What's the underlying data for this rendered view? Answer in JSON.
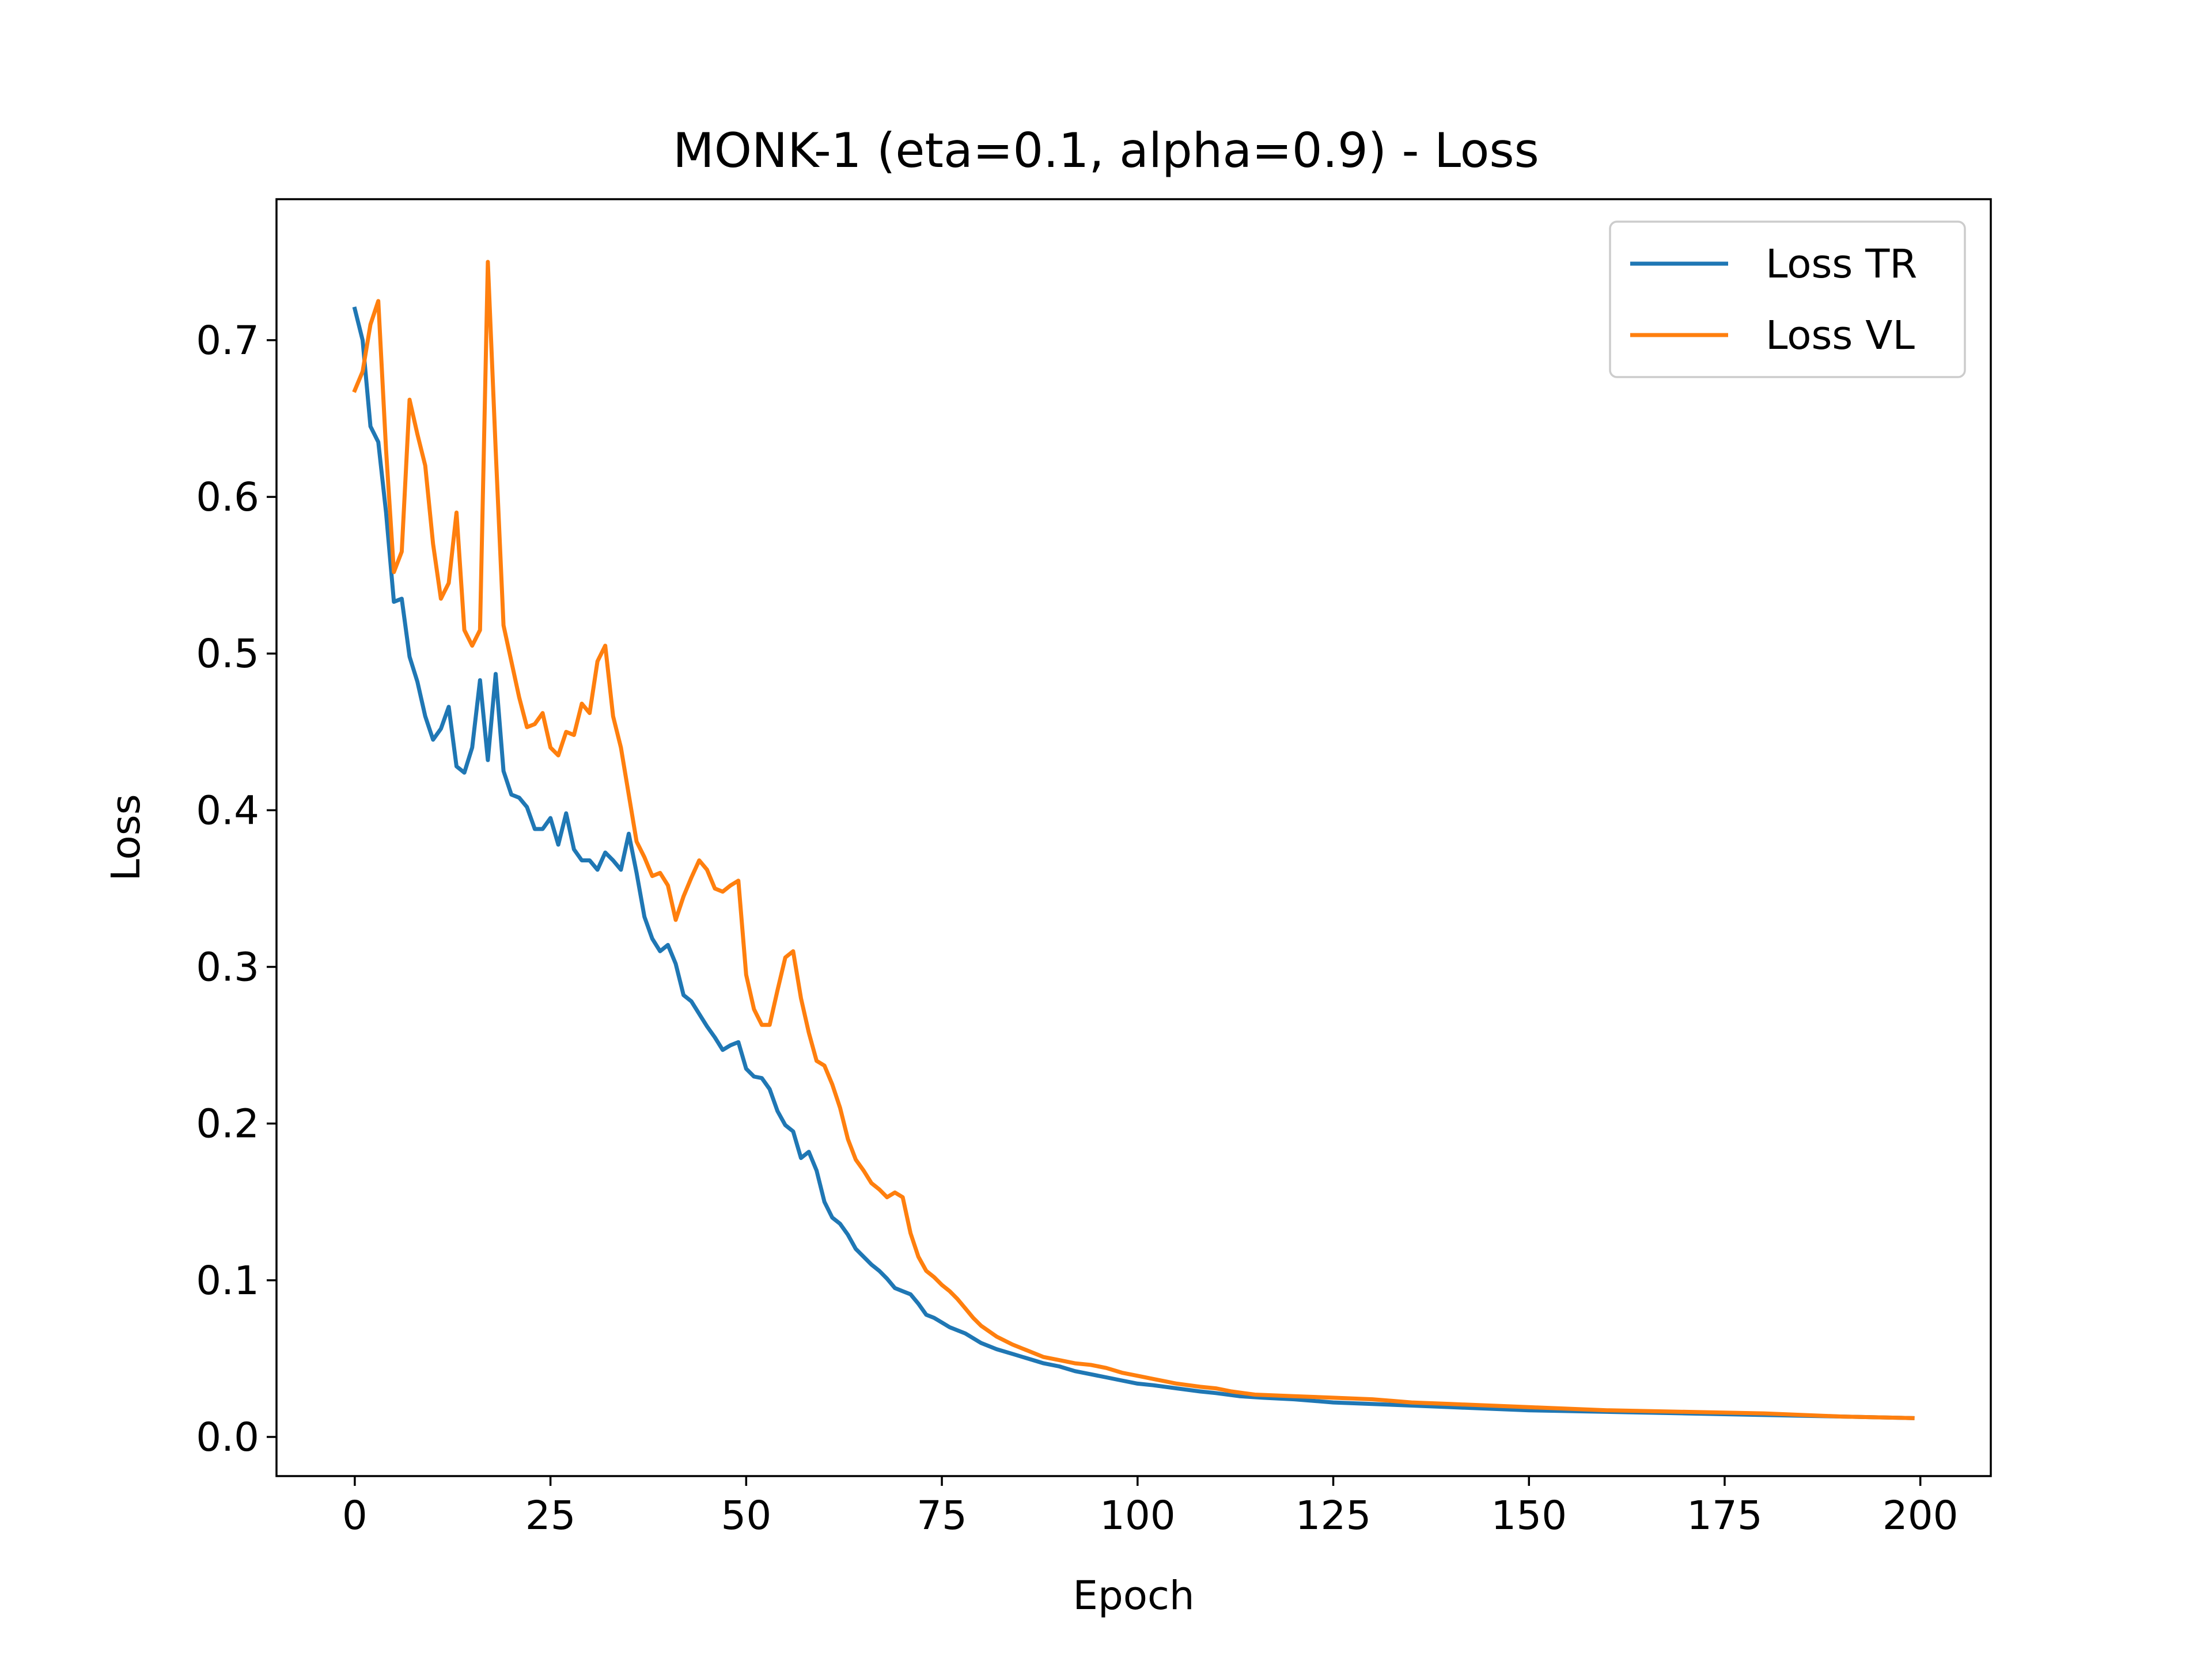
{
  "chart_data": {
    "type": "line",
    "title": "MONK-1 (eta=0.1, alpha=0.9) - Loss",
    "xlabel": "Epoch",
    "ylabel": "Loss",
    "xlim": [
      -10,
      209
    ],
    "ylim": [
      -0.025,
      0.79
    ],
    "xticks": [
      0,
      25,
      50,
      75,
      100,
      125,
      150,
      175,
      200
    ],
    "yticks": [
      0.0,
      0.1,
      0.2,
      0.3,
      0.4,
      0.5,
      0.6,
      0.7
    ],
    "ytick_labels": [
      "0.0",
      "0.1",
      "0.2",
      "0.3",
      "0.4",
      "0.5",
      "0.6",
      "0.7"
    ],
    "grid": false,
    "legend": "top-right",
    "series": [
      {
        "name": "Loss TR",
        "color": "#1f77b4",
        "points": [
          [
            0,
            0.72
          ],
          [
            1,
            0.7
          ],
          [
            2,
            0.645
          ],
          [
            3,
            0.635
          ],
          [
            4,
            0.59
          ],
          [
            5,
            0.533
          ],
          [
            6,
            0.535
          ],
          [
            7,
            0.498
          ],
          [
            8,
            0.482
          ],
          [
            9,
            0.46
          ],
          [
            10,
            0.445
          ],
          [
            11,
            0.452
          ],
          [
            12,
            0.466
          ],
          [
            13,
            0.428
          ],
          [
            14,
            0.424
          ],
          [
            15,
            0.44
          ],
          [
            16,
            0.483
          ],
          [
            17,
            0.432
          ],
          [
            18,
            0.487
          ],
          [
            19,
            0.425
          ],
          [
            20,
            0.41
          ],
          [
            21,
            0.408
          ],
          [
            22,
            0.402
          ],
          [
            23,
            0.388
          ],
          [
            24,
            0.388
          ],
          [
            25,
            0.395
          ],
          [
            26,
            0.378
          ],
          [
            27,
            0.398
          ],
          [
            28,
            0.375
          ],
          [
            29,
            0.368
          ],
          [
            30,
            0.368
          ],
          [
            31,
            0.362
          ],
          [
            32,
            0.373
          ],
          [
            33,
            0.368
          ],
          [
            34,
            0.362
          ],
          [
            35,
            0.385
          ],
          [
            36,
            0.36
          ],
          [
            37,
            0.332
          ],
          [
            38,
            0.318
          ],
          [
            39,
            0.31
          ],
          [
            40,
            0.314
          ],
          [
            41,
            0.302
          ],
          [
            42,
            0.282
          ],
          [
            43,
            0.278
          ],
          [
            44,
            0.27
          ],
          [
            45,
            0.262
          ],
          [
            46,
            0.255
          ],
          [
            47,
            0.247
          ],
          [
            48,
            0.25
          ],
          [
            49,
            0.252
          ],
          [
            50,
            0.235
          ],
          [
            51,
            0.23
          ],
          [
            52,
            0.229
          ],
          [
            53,
            0.222
          ],
          [
            54,
            0.208
          ],
          [
            55,
            0.199
          ],
          [
            56,
            0.195
          ],
          [
            57,
            0.178
          ],
          [
            58,
            0.182
          ],
          [
            59,
            0.17
          ],
          [
            60,
            0.15
          ],
          [
            61,
            0.14
          ],
          [
            62,
            0.136
          ],
          [
            63,
            0.129
          ],
          [
            64,
            0.12
          ],
          [
            65,
            0.115
          ],
          [
            66,
            0.11
          ],
          [
            67,
            0.106
          ],
          [
            68,
            0.101
          ],
          [
            69,
            0.095
          ],
          [
            70,
            0.093
          ],
          [
            71,
            0.091
          ],
          [
            72,
            0.085
          ],
          [
            73,
            0.078
          ],
          [
            74,
            0.076
          ],
          [
            75,
            0.073
          ],
          [
            76,
            0.07
          ],
          [
            78,
            0.066
          ],
          [
            80,
            0.06
          ],
          [
            82,
            0.056
          ],
          [
            84,
            0.053
          ],
          [
            86,
            0.05
          ],
          [
            88,
            0.047
          ],
          [
            90,
            0.045
          ],
          [
            92,
            0.042
          ],
          [
            94,
            0.04
          ],
          [
            96,
            0.038
          ],
          [
            98,
            0.036
          ],
          [
            100,
            0.034
          ],
          [
            102,
            0.033
          ],
          [
            105,
            0.031
          ],
          [
            108,
            0.029
          ],
          [
            110,
            0.028
          ],
          [
            113,
            0.026
          ],
          [
            116,
            0.025
          ],
          [
            120,
            0.024
          ],
          [
            125,
            0.022
          ],
          [
            130,
            0.021
          ],
          [
            135,
            0.02
          ],
          [
            140,
            0.019
          ],
          [
            145,
            0.018
          ],
          [
            150,
            0.017
          ],
          [
            160,
            0.016
          ],
          [
            170,
            0.015
          ],
          [
            180,
            0.014
          ],
          [
            190,
            0.013
          ],
          [
            199,
            0.012
          ]
        ]
      },
      {
        "name": "Loss VL",
        "color": "#ff7f0e",
        "points": [
          [
            0,
            0.668
          ],
          [
            1,
            0.68
          ],
          [
            2,
            0.71
          ],
          [
            3,
            0.725
          ],
          [
            4,
            0.63
          ],
          [
            5,
            0.552
          ],
          [
            6,
            0.565
          ],
          [
            7,
            0.662
          ],
          [
            8,
            0.64
          ],
          [
            9,
            0.62
          ],
          [
            10,
            0.57
          ],
          [
            11,
            0.535
          ],
          [
            12,
            0.545
          ],
          [
            13,
            0.59
          ],
          [
            14,
            0.515
          ],
          [
            15,
            0.505
          ],
          [
            16,
            0.515
          ],
          [
            17,
            0.75
          ],
          [
            18,
            0.63
          ],
          [
            19,
            0.518
          ],
          [
            20,
            0.495
          ],
          [
            21,
            0.472
          ],
          [
            22,
            0.453
          ],
          [
            23,
            0.455
          ],
          [
            24,
            0.462
          ],
          [
            25,
            0.44
          ],
          [
            26,
            0.435
          ],
          [
            27,
            0.45
          ],
          [
            28,
            0.448
          ],
          [
            29,
            0.468
          ],
          [
            30,
            0.462
          ],
          [
            31,
            0.495
          ],
          [
            32,
            0.505
          ],
          [
            33,
            0.46
          ],
          [
            34,
            0.44
          ],
          [
            35,
            0.41
          ],
          [
            36,
            0.38
          ],
          [
            37,
            0.37
          ],
          [
            38,
            0.358
          ],
          [
            39,
            0.36
          ],
          [
            40,
            0.352
          ],
          [
            41,
            0.33
          ],
          [
            42,
            0.345
          ],
          [
            43,
            0.357
          ],
          [
            44,
            0.368
          ],
          [
            45,
            0.362
          ],
          [
            46,
            0.35
          ],
          [
            47,
            0.348
          ],
          [
            48,
            0.352
          ],
          [
            49,
            0.355
          ],
          [
            50,
            0.295
          ],
          [
            51,
            0.273
          ],
          [
            52,
            0.263
          ],
          [
            53,
            0.263
          ],
          [
            54,
            0.285
          ],
          [
            55,
            0.306
          ],
          [
            56,
            0.31
          ],
          [
            57,
            0.28
          ],
          [
            58,
            0.258
          ],
          [
            59,
            0.24
          ],
          [
            60,
            0.237
          ],
          [
            61,
            0.225
          ],
          [
            62,
            0.21
          ],
          [
            63,
            0.19
          ],
          [
            64,
            0.177
          ],
          [
            65,
            0.17
          ],
          [
            66,
            0.162
          ],
          [
            67,
            0.158
          ],
          [
            68,
            0.153
          ],
          [
            69,
            0.156
          ],
          [
            70,
            0.153
          ],
          [
            71,
            0.13
          ],
          [
            72,
            0.115
          ],
          [
            73,
            0.106
          ],
          [
            74,
            0.102
          ],
          [
            75,
            0.097
          ],
          [
            76,
            0.093
          ],
          [
            77,
            0.088
          ],
          [
            78,
            0.082
          ],
          [
            79,
            0.076
          ],
          [
            80,
            0.071
          ],
          [
            82,
            0.064
          ],
          [
            84,
            0.059
          ],
          [
            86,
            0.055
          ],
          [
            88,
            0.051
          ],
          [
            90,
            0.049
          ],
          [
            92,
            0.047
          ],
          [
            94,
            0.046
          ],
          [
            96,
            0.044
          ],
          [
            98,
            0.041
          ],
          [
            100,
            0.039
          ],
          [
            102,
            0.037
          ],
          [
            105,
            0.034
          ],
          [
            108,
            0.032
          ],
          [
            110,
            0.031
          ],
          [
            112,
            0.029
          ],
          [
            115,
            0.027
          ],
          [
            120,
            0.026
          ],
          [
            125,
            0.025
          ],
          [
            130,
            0.024
          ],
          [
            135,
            0.022
          ],
          [
            140,
            0.021
          ],
          [
            145,
            0.02
          ],
          [
            150,
            0.019
          ],
          [
            160,
            0.017
          ],
          [
            170,
            0.016
          ],
          [
            180,
            0.015
          ],
          [
            190,
            0.013
          ],
          [
            199,
            0.012
          ]
        ]
      }
    ]
  }
}
